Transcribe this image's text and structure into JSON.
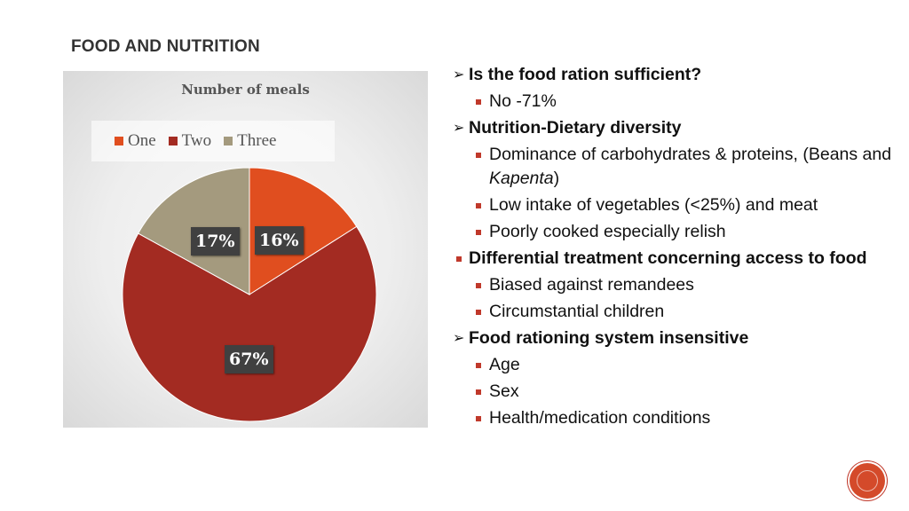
{
  "slide": {
    "title": "FOOD AND NUTRITION"
  },
  "chart_data": {
    "type": "pie",
    "title": "Number of meals",
    "categories": [
      "One",
      "Two",
      "Three"
    ],
    "values": [
      16,
      67,
      17
    ],
    "labels": [
      "16%",
      "67%",
      "17%"
    ],
    "colors": [
      "#e04e1f",
      "#a32b22",
      "#a49a7e"
    ],
    "legend_position": "top"
  },
  "bullets": [
    {
      "level": 1,
      "marker": "arrow",
      "text": "Is the food ration sufficient?"
    },
    {
      "level": 2,
      "marker": "square",
      "text": "No -71%"
    },
    {
      "level": 1,
      "marker": "arrow",
      "text": "Nutrition-Dietary diversity"
    },
    {
      "level": 2,
      "marker": "square",
      "text": "Dominance of carbohydrates & proteins, (Beans and ",
      "italic": "Kapenta",
      "after": ")"
    },
    {
      "level": 2,
      "marker": "square",
      "text": "Low intake of vegetables (<25%) and meat"
    },
    {
      "level": 2,
      "marker": "square",
      "text": "Poorly cooked especially relish"
    },
    {
      "level": 1,
      "marker": "square",
      "text": "Differential treatment concerning access to food"
    },
    {
      "level": 2,
      "marker": "square",
      "text": "Biased against remandees"
    },
    {
      "level": 2,
      "marker": "square",
      "text": "Circumstantial children"
    },
    {
      "level": 1,
      "marker": "arrow",
      "text": "Food rationing system insensitive"
    },
    {
      "level": 2,
      "marker": "square",
      "text": "Age"
    },
    {
      "level": 2,
      "marker": "square",
      "text": "Sex"
    },
    {
      "level": 2,
      "marker": "square",
      "text": "Health/medication conditions"
    }
  ]
}
